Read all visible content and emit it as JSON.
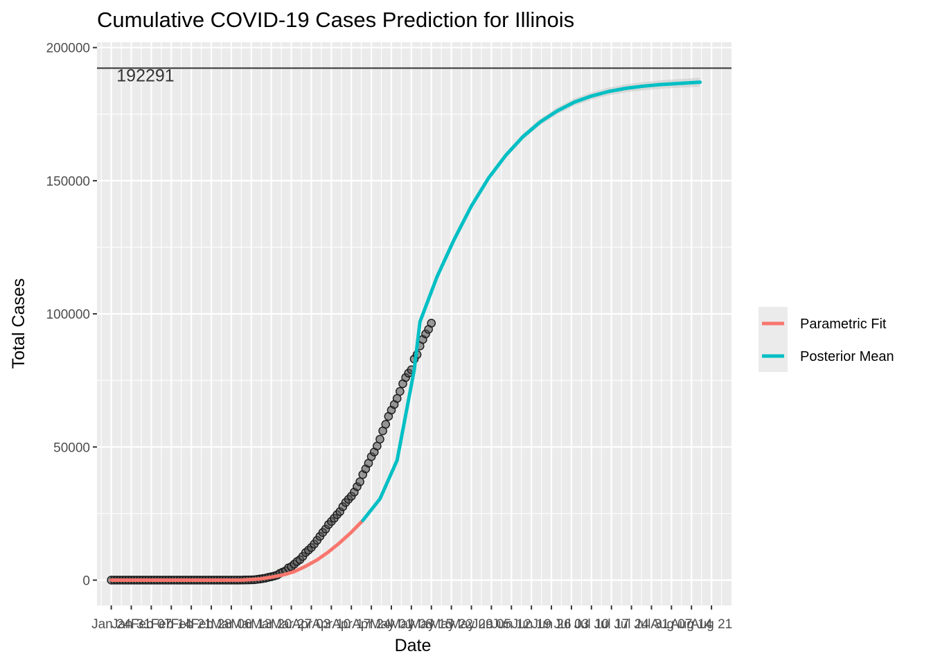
{
  "chart_data": {
    "type": "line",
    "title": "Cumulative COVID-19 Cases Prediction for Illinois",
    "xlabel": "Date",
    "ylabel": "Total Cases",
    "ylim": [
      -9500,
      202000
    ],
    "xlim": [
      "2020-01-19",
      "2020-08-28"
    ],
    "y_ticks": [
      0,
      50000,
      100000,
      150000,
      200000
    ],
    "y_tick_labels": [
      "0",
      "50000",
      "100000",
      "150000",
      "200000"
    ],
    "x_ticks": [
      "2020-01-24",
      "2020-01-31",
      "2020-02-07",
      "2020-02-14",
      "2020-02-21",
      "2020-02-28",
      "2020-03-06",
      "2020-03-13",
      "2020-03-20",
      "2020-03-27",
      "2020-04-03",
      "2020-04-10",
      "2020-04-17",
      "2020-04-24",
      "2020-05-01",
      "2020-05-08",
      "2020-05-15",
      "2020-05-22",
      "2020-05-29",
      "2020-06-05",
      "2020-06-12",
      "2020-06-19",
      "2020-06-26",
      "2020-07-03",
      "2020-07-10",
      "2020-07-17",
      "2020-07-24",
      "2020-07-31",
      "2020-08-07",
      "2020-08-14",
      "2020-08-21"
    ],
    "x_tick_labels": [
      "Jan 24",
      "Jan 31",
      "Feb 07",
      "Feb 14",
      "Feb 21",
      "Feb 28",
      "Mar 06",
      "Mar 13",
      "Mar 20",
      "Mar 27",
      "Apr 03",
      "Apr 10",
      "Apr 17",
      "Apr 24",
      "May 01",
      "May 08",
      "May 15",
      "May 22",
      "May 29",
      "Jun 05",
      "Jun 12",
      "Jun 19",
      "Jun 26",
      "Jul 03",
      "Jul 10",
      "Jul 17",
      "Jul 24",
      "Jul 31",
      "Aug 07",
      "Aug 14",
      "Aug 21"
    ],
    "grid": true,
    "hline": {
      "y": 192291,
      "label": "192291"
    },
    "observed": {
      "start": "2020-01-24",
      "values": [
        1,
        1,
        1,
        2,
        2,
        2,
        2,
        2,
        2,
        2,
        2,
        2,
        2,
        2,
        2,
        2,
        2,
        2,
        2,
        2,
        2,
        2,
        2,
        2,
        2,
        2,
        2,
        2,
        2,
        2,
        2,
        2,
        2,
        2,
        2,
        2,
        2,
        3,
        4,
        6,
        7,
        11,
        12,
        19,
        22,
        27,
        46,
        64,
        93,
        105,
        161,
        288,
        422,
        585,
        753,
        1049,
        1285,
        1535,
        1865,
        2538,
        3026,
        3491,
        4596,
        5057,
        5994,
        6980,
        7695,
        8904,
        10357,
        11256,
        12262,
        13549,
        14953,
        16422,
        17887,
        19180,
        20852,
        22025,
        23247,
        24593,
        25733,
        27575,
        29160,
        30357,
        31508,
        33059,
        35108,
        36934,
        39658,
        41777,
        43903,
        46364,
        48102,
        50355,
        52918,
        56055,
        58505,
        61499,
        63840,
        65962,
        68232,
        70873,
        73760,
        76085,
        77741,
        79007,
        83021,
        84698,
        87937,
        90369,
        92457,
        94191,
        96485
      ]
    },
    "series": [
      {
        "name": "Parametric Fit",
        "color": "#F8766D",
        "x": [
          "2020-01-24",
          "2020-02-14",
          "2020-03-01",
          "2020-03-10",
          "2020-03-16",
          "2020-03-21",
          "2020-03-25",
          "2020-03-28",
          "2020-04-01",
          "2020-04-05",
          "2020-04-09",
          "2020-04-13",
          "2020-04-17",
          "2020-04-21"
        ],
        "y": [
          1,
          2,
          2,
          40,
          450,
          1300,
          2200,
          3200,
          5200,
          7600,
          10600,
          14100,
          18000,
          22400
        ]
      },
      {
        "name": "Posterior Mean",
        "color": "#00BFC4",
        "x": [
          "2020-04-21",
          "2020-04-27",
          "2020-05-03",
          "2020-05-09",
          "2020-05-11",
          "2020-05-17",
          "2020-05-23",
          "2020-05-29",
          "2020-06-04",
          "2020-06-10",
          "2020-06-16",
          "2020-06-22",
          "2020-06-28",
          "2020-07-04",
          "2020-07-10",
          "2020-07-16",
          "2020-07-22",
          "2020-07-28",
          "2020-08-03",
          "2020-08-09",
          "2020-08-17"
        ],
        "y": [
          22400,
          30500,
          45000,
          79000,
          97000,
          114000,
          128000,
          140500,
          151000,
          159500,
          166500,
          172000,
          176200,
          179500,
          181800,
          183500,
          184700,
          185500,
          186100,
          186500,
          187000
        ],
        "band": [
          null,
          null,
          null,
          null,
          null,
          600,
          700,
          800,
          900,
          1000,
          1100,
          1200,
          1300,
          1350,
          1400,
          1450,
          1500,
          1550,
          1600,
          1650,
          1700
        ]
      }
    ],
    "legend": {
      "position": "right",
      "entries": [
        "Parametric Fit",
        "Posterior Mean"
      ]
    }
  }
}
